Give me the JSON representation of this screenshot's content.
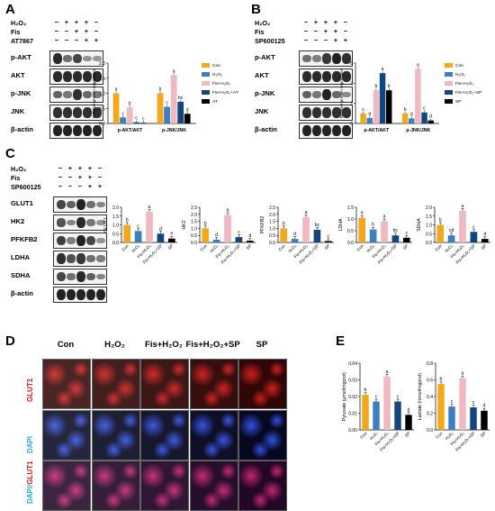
{
  "colors": {
    "con": "#f2a71c",
    "h2o2": "#3b7fc0",
    "fis_h2o2": "#f0b8c0",
    "fis_h2o2_inh": "#12457d",
    "inh": "#000000"
  },
  "panel_letters": [
    "A",
    "B",
    "C",
    "D",
    "E"
  ],
  "panel_a": {
    "rows": [
      "H₂O₂",
      "Fis",
      "AT7867"
    ],
    "signs": [
      [
        "−",
        "+",
        "+",
        "+",
        "−"
      ],
      [
        "−",
        "−",
        "+",
        "+",
        "−"
      ],
      [
        "−",
        "−",
        "−",
        "+",
        "+"
      ]
    ],
    "blots": [
      "p-AKT",
      "AKT",
      "p-JNK",
      "JNK",
      "β-actin"
    ]
  },
  "panel_b": {
    "rows": [
      "H₂O₂",
      "Fis",
      "SP600125"
    ],
    "signs": [
      [
        "−",
        "+",
        "+",
        "+",
        "−"
      ],
      [
        "−",
        "−",
        "+",
        "+",
        "−"
      ],
      [
        "−",
        "−",
        "−",
        "+",
        "+"
      ]
    ],
    "blots": [
      "p-AKT",
      "AKT",
      "p-JNK",
      "JNK",
      "β-actin"
    ]
  },
  "panel_c": {
    "rows": [
      "H₂O₂",
      "Fis",
      "SP600125"
    ],
    "signs": [
      [
        "−",
        "+",
        "+",
        "+",
        "−"
      ],
      [
        "−",
        "−",
        "+",
        "+",
        "−"
      ],
      [
        "−",
        "−",
        "−",
        "+",
        "+"
      ]
    ],
    "blots": [
      "GLUT1",
      "HK2",
      "PFKFB2",
      "LDHA",
      "SDHA",
      "β-actin"
    ]
  },
  "panel_d": {
    "columns": [
      "Con",
      "H₂O₂",
      "Fis+H₂O₂",
      "Fis+H₂O₂+SP",
      "SP"
    ],
    "rows": [
      "GLUT1",
      "DAPI",
      "DAPI/GLUT1"
    ],
    "row_colors": [
      "#e8141d",
      "#2aa7e0",
      "#2aa7e0"
    ]
  },
  "chart_data": [
    {
      "id": "A",
      "type": "bar",
      "categories": [
        "p-AKT/AKT",
        "p-JNK/JNK"
      ],
      "ylabel": "Relative protein expression",
      "ylim": [
        0,
        2.0
      ],
      "yticks": [
        "0.0",
        "0.5",
        "1.0",
        "1.5",
        "2.0"
      ],
      "legend": [
        "Con",
        "H₂O₂",
        "Fis+H₂O₂",
        "Fis+H₂O₂+AT",
        "AT"
      ],
      "series": [
        {
          "name": "Con",
          "values": [
            1.0,
            1.0
          ],
          "letters": [
            "a",
            "b"
          ]
        },
        {
          "name": "H₂O₂",
          "values": [
            0.2,
            0.55
          ],
          "letters": [
            "c",
            "c"
          ]
        },
        {
          "name": "Fis+H₂O₂",
          "values": [
            0.52,
            1.6
          ],
          "letters": [
            "b",
            "a"
          ]
        },
        {
          "name": "Fis+H₂O₂+AT",
          "values": [
            0.04,
            0.72
          ],
          "letters": [
            "c",
            "bc"
          ]
        },
        {
          "name": "AT",
          "values": [
            0.02,
            0.32
          ],
          "letters": [
            "c",
            "d"
          ]
        }
      ]
    },
    {
      "id": "B",
      "type": "bar",
      "categories": [
        "p-AKT/AKT",
        "p-JNK/JNK"
      ],
      "ylabel": "Relative protein expression",
      "ylim": [
        0,
        6
      ],
      "yticks": [
        "0",
        "2",
        "4",
        "6"
      ],
      "legend": [
        "Con",
        "H₂O₂",
        "Fis+H₂O₂",
        "Fis+H₂O₂+SP",
        "SP"
      ],
      "series": [
        {
          "name": "Con",
          "values": [
            1.0,
            1.0
          ],
          "letters": [
            "c",
            "b"
          ]
        },
        {
          "name": "H₂O₂",
          "values": [
            0.55,
            0.5
          ],
          "letters": [
            "d",
            "d"
          ]
        },
        {
          "name": "Fis+H₂O₂",
          "values": [
            3.3,
            5.4
          ],
          "letters": [
            "b",
            "a"
          ]
        },
        {
          "name": "Fis+H₂O₂+SP",
          "values": [
            5.0,
            1.1
          ],
          "letters": [
            "a",
            "c"
          ]
        },
        {
          "name": "SP",
          "values": [
            3.3,
            0.3
          ],
          "letters": [
            "b",
            "d"
          ]
        }
      ]
    },
    {
      "id": "C-GLUT1",
      "type": "bar",
      "ylabel": "GLUT1",
      "ylim": [
        0,
        2.0
      ],
      "yticks": [
        "0.0",
        "0.5",
        "1.0",
        "1.5",
        "2.0"
      ],
      "categories": [
        "Con",
        "H₂O₂",
        "Fis+H₂O₂",
        "Fis+H₂O₂+SP",
        "SP"
      ],
      "values": [
        1.0,
        0.65,
        1.75,
        0.5,
        0.22
      ],
      "letters": [
        "b",
        "c",
        "a",
        "d",
        "e"
      ]
    },
    {
      "id": "C-HK2",
      "type": "bar",
      "ylabel": "HK2",
      "ylim": [
        0,
        2.5
      ],
      "yticks": [
        "0.0",
        "0.5",
        "1.0",
        "1.5",
        "2.0",
        "2.5"
      ],
      "categories": [
        "Con",
        "H₂O₂",
        "Fis+H₂O₂",
        "Fis+H₂O₂+SP",
        "SP"
      ],
      "values": [
        1.0,
        0.2,
        1.95,
        0.38,
        0.12
      ],
      "letters": [
        "b",
        "d",
        "a",
        "c",
        "d"
      ]
    },
    {
      "id": "C-PFKFB2",
      "type": "bar",
      "ylabel": "PFKFB2",
      "ylim": [
        0,
        2.5
      ],
      "yticks": [
        "0.0",
        "0.5",
        "1.0",
        "1.5",
        "2.0",
        "2.5"
      ],
      "categories": [
        "Con",
        "H₂O₂",
        "Fis+H₂O₂",
        "Fis+H₂O₂+SP",
        "SP"
      ],
      "values": [
        1.0,
        0.25,
        1.8,
        0.9,
        0.1
      ],
      "letters": [
        "b",
        "d",
        "a",
        "bc",
        "c"
      ]
    },
    {
      "id": "C-LDHA",
      "type": "bar",
      "ylabel": "LDHA",
      "ylim": [
        0,
        1.5
      ],
      "yticks": [
        "0.0",
        "0.5",
        "1.0",
        "1.5"
      ],
      "categories": [
        "Con",
        "H₂O₂",
        "Fis+H₂O₂",
        "Fis+H₂O₂+SP",
        "SP"
      ],
      "values": [
        1.05,
        0.55,
        0.9,
        0.3,
        0.2
      ],
      "letters": [
        "a",
        "b",
        "a",
        "bc",
        "c"
      ]
    },
    {
      "id": "C-SDHA",
      "type": "bar",
      "ylabel": "SDHA",
      "ylim": [
        0,
        2.0
      ],
      "yticks": [
        "0.0",
        "0.5",
        "1.0",
        "1.5",
        "2.0"
      ],
      "categories": [
        "Con",
        "H₂O₂",
        "Fis+H₂O₂",
        "Fis+H₂O₂+SP",
        "SP"
      ],
      "values": [
        1.0,
        0.4,
        1.8,
        0.6,
        0.2
      ],
      "letters": [
        "b",
        "cd",
        "a",
        "c",
        "d"
      ]
    },
    {
      "id": "E-Pyruvate",
      "type": "bar",
      "ylabel": "Pyruvate (μmol/mgprot)",
      "ylim": [
        0,
        0.04
      ],
      "yticks": [
        "0.00",
        "0.01",
        "0.02",
        "0.03",
        "0.04"
      ],
      "categories": [
        "Con",
        "H₂O₂",
        "Fis+H₂O₂",
        "Fis+H₂O₂+SP",
        "SP"
      ],
      "values": [
        0.021,
        0.017,
        0.032,
        0.017,
        0.009
      ],
      "letters": [
        "b",
        "c",
        "a",
        "c",
        "d"
      ]
    },
    {
      "id": "E-Lactate",
      "type": "bar",
      "ylabel": "Lactate (mmol/mgprot)",
      "ylim": [
        0,
        0.8
      ],
      "yticks": [
        "0.0",
        "0.2",
        "0.4",
        "0.6",
        "0.8"
      ],
      "categories": [
        "Con",
        "H₂O₂",
        "Fis+H₂O₂",
        "Fis+H₂O₂+SP",
        "SP"
      ],
      "values": [
        0.55,
        0.28,
        0.62,
        0.27,
        0.23
      ],
      "letters": [
        "b",
        "c",
        "a",
        "c",
        "d"
      ]
    }
  ]
}
